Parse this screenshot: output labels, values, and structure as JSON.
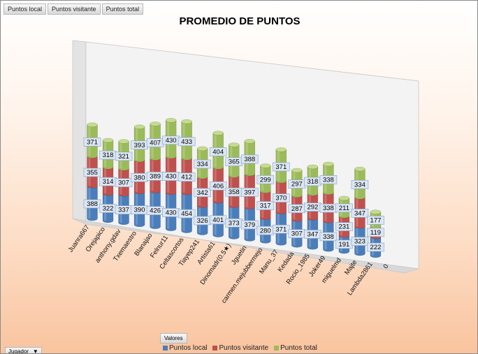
{
  "field_buttons": [
    "Puntos local",
    "Puntos visitante",
    "Puntos total"
  ],
  "valores_label": "Valores",
  "jugador_label": "Jugador",
  "jugador_arrow": "▼",
  "colors": {
    "local": "#4a7ebb",
    "visitante": "#c0504d",
    "total": "#9bbb59"
  },
  "legend": [
    "Puntos local",
    "Puntos visitante",
    "Puntos total"
  ],
  "chart_data": {
    "type": "bar",
    "stacked": true,
    "three_d": true,
    "title": "PROMEDIO DE PUNTOS",
    "xlabel": "",
    "ylabel": "",
    "legend_position": "bottom",
    "categories": [
      "Juanra667",
      "Orejapico",
      "anthony.gdav",
      "Txemaestro",
      "Blanajao",
      "Felnur11",
      "Celtascortos",
      "Tiayep241",
      "Artista61",
      "Dinomadr(0.5★)",
      "Jguetin",
      "carmen.mejubbermejo",
      "Manu_37",
      "Kedada",
      "Rocio_1985",
      "Joker49",
      "miguelmd",
      "Majte",
      "Lambda2861",
      "0"
    ],
    "series": [
      {
        "name": "Puntos local",
        "values": [
          388,
          322,
          337,
          390,
          426,
          430,
          454,
          326,
          401,
          373,
          379,
          280,
          371,
          307,
          347,
          338,
          191,
          323,
          222,
          null
        ]
      },
      {
        "name": "Puntos visitante",
        "values": [
          355,
          314,
          307,
          380,
          389,
          430,
          412,
          342,
          406,
          358,
          397,
          317,
          370,
          287,
          292,
          338,
          231,
          347,
          119,
          null
        ]
      },
      {
        "name": "Puntos total",
        "values": [
          371,
          318,
          321,
          393,
          407,
          430,
          433,
          334,
          404,
          365,
          388,
          299,
          371,
          297,
          318,
          338,
          211,
          334,
          177,
          null
        ]
      }
    ]
  }
}
